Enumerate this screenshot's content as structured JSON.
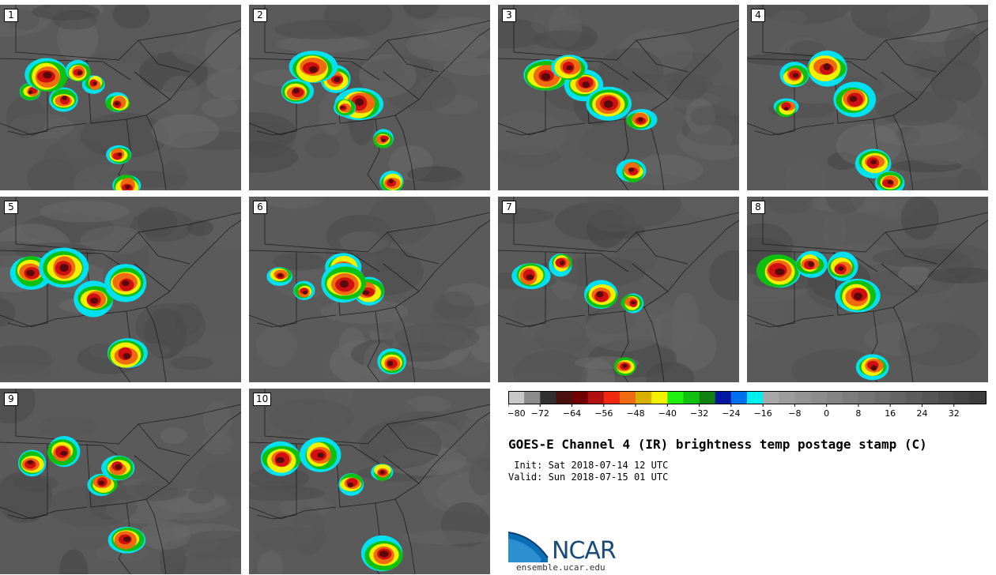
{
  "panels": [
    {
      "label": "1"
    },
    {
      "label": "2"
    },
    {
      "label": "3"
    },
    {
      "label": "4"
    },
    {
      "label": "5"
    },
    {
      "label": "6"
    },
    {
      "label": "7"
    },
    {
      "label": "8"
    },
    {
      "label": "9"
    },
    {
      "label": "10"
    }
  ],
  "colorbar": {
    "tick_labels": [
      "−80",
      "−72",
      "−64",
      "−56",
      "−48",
      "−40",
      "−32",
      "−24",
      "−16",
      "−8",
      "0",
      "8",
      "16",
      "24",
      "32"
    ],
    "range": [
      -80,
      40
    ],
    "bin_width": 4,
    "colors": [
      "#c8c8c8",
      "#8c8c8c",
      "#303030",
      "#4a1010",
      "#700000",
      "#b01010",
      "#f02810",
      "#f06a10",
      "#d8b000",
      "#f0f000",
      "#20f010",
      "#10c010",
      "#108010",
      "#0018a0",
      "#0070f0",
      "#00f0f0",
      "#a8a8a8",
      "#9c9c9c",
      "#949494",
      "#8c8c8c",
      "#848484",
      "#7c7c7c",
      "#747474",
      "#6c6c6c",
      "#646464",
      "#5c5c5c",
      "#545454",
      "#4c4c4c",
      "#444444",
      "#3c3c3c"
    ]
  },
  "title": "GOES-E Channel 4 (IR) brightness temp postage stamp (C)",
  "init": " Init: Sat 2018-07-14 12 UTC",
  "valid": "Valid: Sun 2018-07-15 01 UTC",
  "logo_text": "NCAR",
  "website": "ensemble.ucar.edu"
}
